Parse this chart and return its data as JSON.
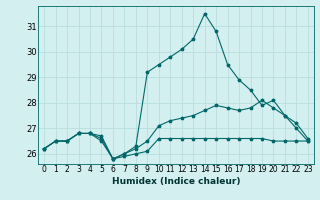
{
  "title": "",
  "xlabel": "Humidex (Indice chaleur)",
  "ylabel": "",
  "background_color": "#d4efef",
  "grid_color": "#b8dede",
  "line_color": "#006868",
  "xlim": [
    -0.5,
    23.5
  ],
  "ylim": [
    25.6,
    31.8
  ],
  "yticks": [
    26,
    27,
    28,
    29,
    30,
    31
  ],
  "xticks": [
    0,
    1,
    2,
    3,
    4,
    5,
    6,
    7,
    8,
    9,
    10,
    11,
    12,
    13,
    14,
    15,
    16,
    17,
    18,
    19,
    20,
    21,
    22,
    23
  ],
  "series": [
    [
      26.2,
      26.5,
      26.5,
      26.8,
      26.8,
      26.7,
      25.8,
      25.9,
      26.0,
      26.1,
      26.6,
      26.6,
      26.6,
      26.6,
      26.6,
      26.6,
      26.6,
      26.6,
      26.6,
      26.6,
      26.5,
      26.5,
      26.5,
      26.5
    ],
    [
      26.2,
      26.5,
      26.5,
      26.8,
      26.8,
      26.5,
      25.8,
      26.0,
      26.2,
      26.5,
      27.1,
      27.3,
      27.4,
      27.5,
      27.7,
      27.9,
      27.8,
      27.7,
      27.8,
      28.1,
      27.8,
      27.5,
      27.2,
      26.6
    ],
    [
      26.2,
      26.5,
      26.5,
      26.8,
      26.8,
      26.6,
      25.8,
      26.0,
      26.3,
      29.2,
      29.5,
      29.8,
      30.1,
      30.5,
      31.5,
      30.8,
      29.5,
      28.9,
      28.5,
      27.9,
      28.1,
      27.5,
      27.0,
      26.5
    ]
  ]
}
